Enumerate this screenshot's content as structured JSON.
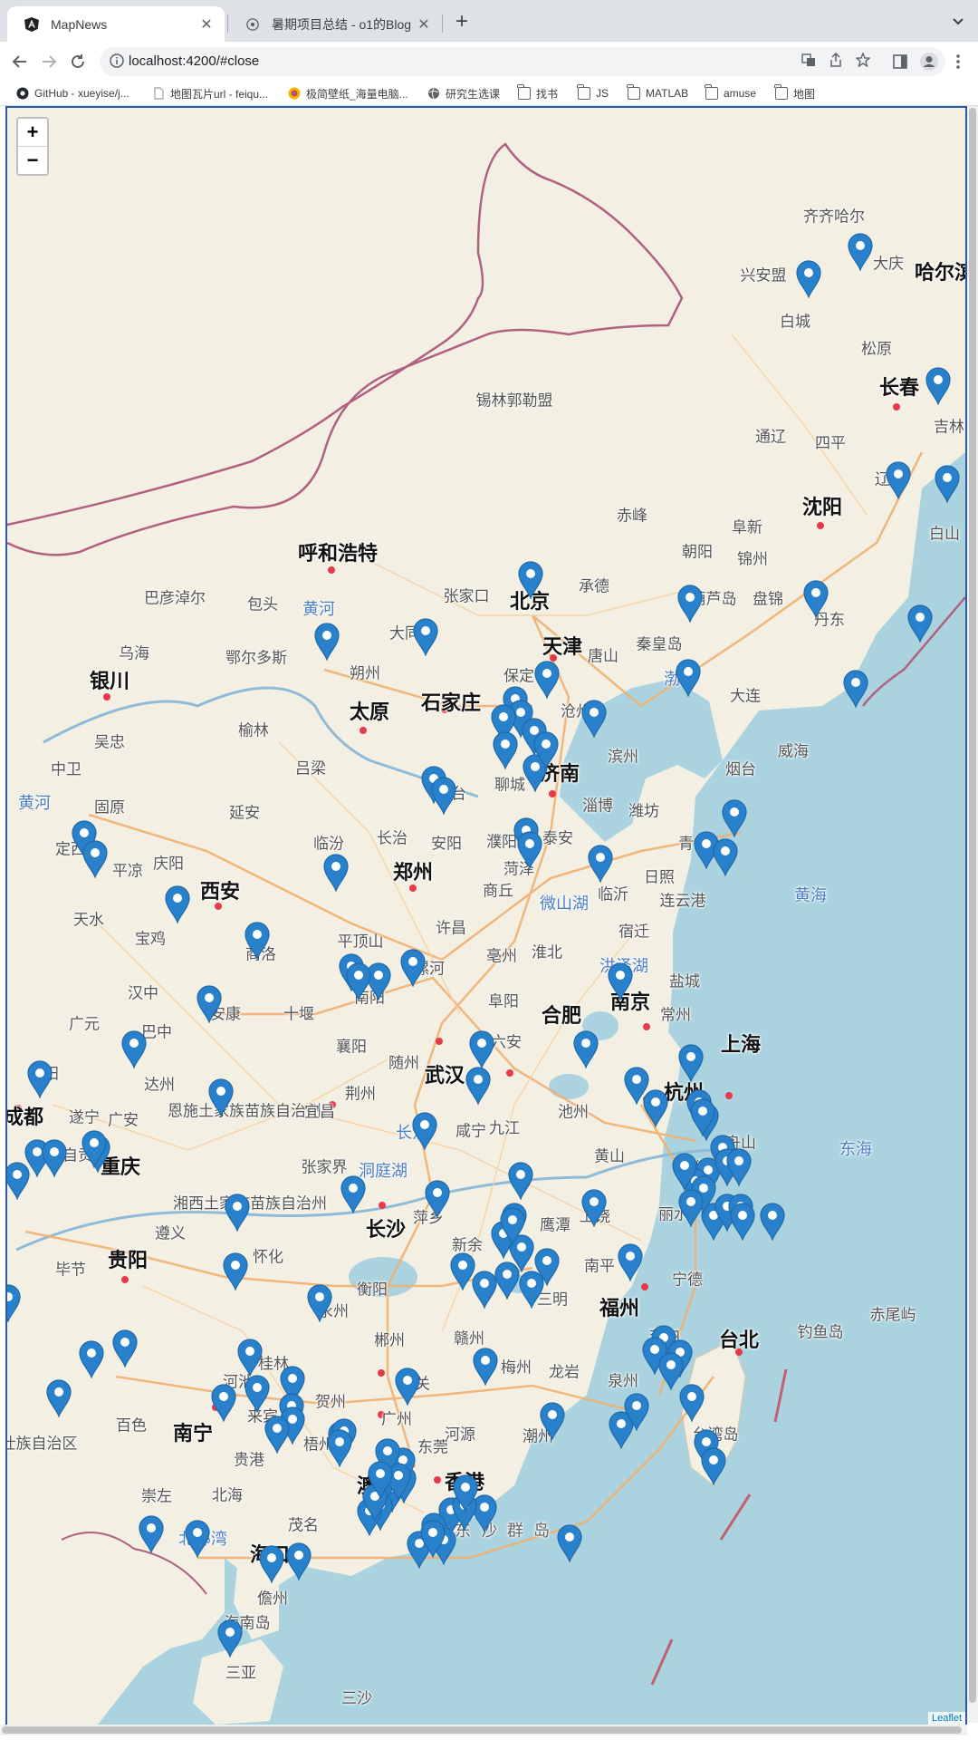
{
  "browser": {
    "tabs": [
      {
        "title": "MapNews",
        "icon": "angular-icon",
        "close_label": "✕"
      },
      {
        "title": "暑期项目总结 - o1的Blog",
        "icon": "github-icon",
        "close_label": "✕"
      }
    ],
    "new_tab_label": "+",
    "url": "localhost:4200/#close"
  },
  "bookmarks": [
    {
      "label": "GitHub - xueyise/j...",
      "icon": "github-icon"
    },
    {
      "label": "地图瓦片url - feiqu...",
      "icon": "page-icon"
    },
    {
      "label": "极简壁纸_海量电脑...",
      "icon": "wallpaper-icon"
    },
    {
      "label": "研究生选课",
      "icon": "globe-icon"
    },
    {
      "label": "找书",
      "icon": "folder-icon"
    },
    {
      "label": "JS",
      "icon": "folder-icon"
    },
    {
      "label": "MATLAB",
      "icon": "folder-icon"
    },
    {
      "label": "amuse",
      "icon": "folder-icon"
    },
    {
      "label": "地图",
      "icon": "folder-icon"
    }
  ],
  "map": {
    "zoom_in": "+",
    "zoom_out": "−",
    "attribution": "Leaflet",
    "labels": {
      "qiqihaer": "齐齐哈尔",
      "daqing": "大庆",
      "haerbin": "哈尔滨",
      "xinganmeng": "兴安盟",
      "baicheng": "白城",
      "songyuan": "松原",
      "changchun": "长春",
      "jilin": "吉林",
      "xilinguole": "锡林郭勒盟",
      "tongliao": "通辽",
      "siping": "四平",
      "liaoyuan": "辽源",
      "chifeng": "赤峰",
      "fuxin": "阜新",
      "shenyang": "沈阳",
      "baishan": "白山",
      "chaoyang": "朝阳",
      "jinzhou": "锦州",
      "huhehaote": "呼和浩特",
      "chengde": "承德",
      "beijing": "北京",
      "huludao": "葫芦岛",
      "panjin": "盘锦",
      "dandong": "丹东",
      "bayannaoer": "巴彦淖尔",
      "baotou": "包头",
      "huanghe1": "黄河",
      "zhangjiakou": "张家口",
      "datong": "大同",
      "tianjin": "天津",
      "qinhuangdao": "秦皇岛",
      "tangshan": "唐山",
      "wuhai": "乌海",
      "eerduosi": "鄂尔多斯",
      "shuozhou": "朔州",
      "baoding": "保定",
      "bohai": "渤海",
      "dalian": "大连",
      "yinchuan": "银川",
      "taiyuan": "太原",
      "shijiazhuang": "石家庄",
      "cangzhou": "沧州",
      "yulin": "榆林",
      "wuzhong": "吴忠",
      "zhongwei": "中卫",
      "weihai": "威海",
      "binzhou": "滨州",
      "yantai": "烟台",
      "lvliang": "吕梁",
      "jinan": "济南",
      "huanghe2": "黄河",
      "guyuan": "固原",
      "yanan": "延安",
      "xingtai": "邢台",
      "liaocheng": "聊城",
      "zibo": "淄博",
      "weifang": "潍坊",
      "qingdao": "青岛",
      "dingxi": "定西",
      "pingliang": "平凉",
      "qingyang": "庆阳",
      "linfen": "临汾",
      "changzhi": "长治",
      "anyang": "安阳",
      "puyang": "濮阳",
      "taian": "泰安",
      "heze": "菏泽",
      "rizhao": "日照",
      "xian": "西安",
      "zhengzhou": "郑州",
      "shangqiu": "商丘",
      "linyi": "临沂",
      "lianyungang": "连云港",
      "huanghai": "黄海",
      "weishanhu": "微山湖",
      "tianshui": "天水",
      "baoji": "宝鸡",
      "shangluo": "商洛",
      "pingdingshan": "平顶山",
      "xuchang": "许昌",
      "suqian": "宿迁",
      "huaibei": "淮北",
      "bozhou": "亳州",
      "hongzehu": "洪泽湖",
      "yancheng": "盐城",
      "luohe": "漯河",
      "hanzhong": "汉中",
      "nanyang": "南阳",
      "fuyang": "阜阳",
      "nanjing": "南京",
      "guangyuan": "广元",
      "bazhong": "巴中",
      "ankang": "安康",
      "shiyan": "十堰",
      "hefei": "合肥",
      "changzhou": "常州",
      "luan": "六安",
      "shanghai": "上海",
      "xiangyang": "襄阳",
      "suizhou": "随州",
      "mianyang": "绵阳",
      "dazhou": "达州",
      "wuhan": "武汉",
      "hangzhou": "杭州",
      "chengdu": "成都",
      "suining": "遂宁",
      "guangan": "广安",
      "enshi": "恩施土家族苗族自治州",
      "yichang": "宜昌",
      "jingzhou": "荆州",
      "chizhou": "池州",
      "zhoushan": "舟山",
      "donghai": "东海",
      "zigong": "自贡",
      "chongqing": "重庆",
      "changjiang1": "长江",
      "zhangjiajie": "张家界",
      "dongtinghu": "洞庭湖",
      "xianning": "咸宁",
      "jiujiang": "九江",
      "huangshan": "黄山",
      "jinhua": "金华",
      "xiangxi": "湘西土家族苗族自治州",
      "pingxiang": "萍乡",
      "changsha": "长沙",
      "xinyu": "新余",
      "yingtan": "鹰潭",
      "shangrao": "上饶",
      "lishui": "丽水",
      "taizhou": "台州",
      "zunyi": "遵义",
      "guiyang": "贵阳",
      "huaihua": "怀化",
      "bijie": "毕节",
      "nanping": "南平",
      "ningde": "宁德",
      "hengyang": "衡阳",
      "sanming": "三明",
      "fuzhou": "福州",
      "diaoyudao": "钓鱼岛",
      "chiweiyu": "赤尾屿",
      "yongzhou": "永州",
      "chenzhou": "郴州",
      "ganzhou": "赣州",
      "putian": "莆田",
      "taibei": "台北",
      "guilin": "桂林",
      "hechi": "河池",
      "shaoguan": "韶关",
      "meizhou": "梅州",
      "longyan": "龙岩",
      "quanzhou": "泉州",
      "laibin": "来宾",
      "hezhou": "贺州",
      "heyuan": "河源",
      "taiwandao": "台湾岛",
      "baise": "百色",
      "guangxi": "壮族自治区",
      "nanning": "南宁",
      "guigang": "贵港",
      "wuzhou": "梧州",
      "chaozhou": "潮州",
      "chongzuo": "崇左",
      "beihai": "北海",
      "maoming": "茂名",
      "macau": "澳门",
      "hongkong": "香港",
      "beibuwan": "北部湾",
      "dongsha": "东 沙 群 岛",
      "haikou": "海口",
      "danzhou": "儋州",
      "hainandao": "海南岛",
      "sanya": "三亚",
      "sansha": "三沙",
      "dongguan": "东莞",
      "guangzhou": "广州"
    }
  }
}
